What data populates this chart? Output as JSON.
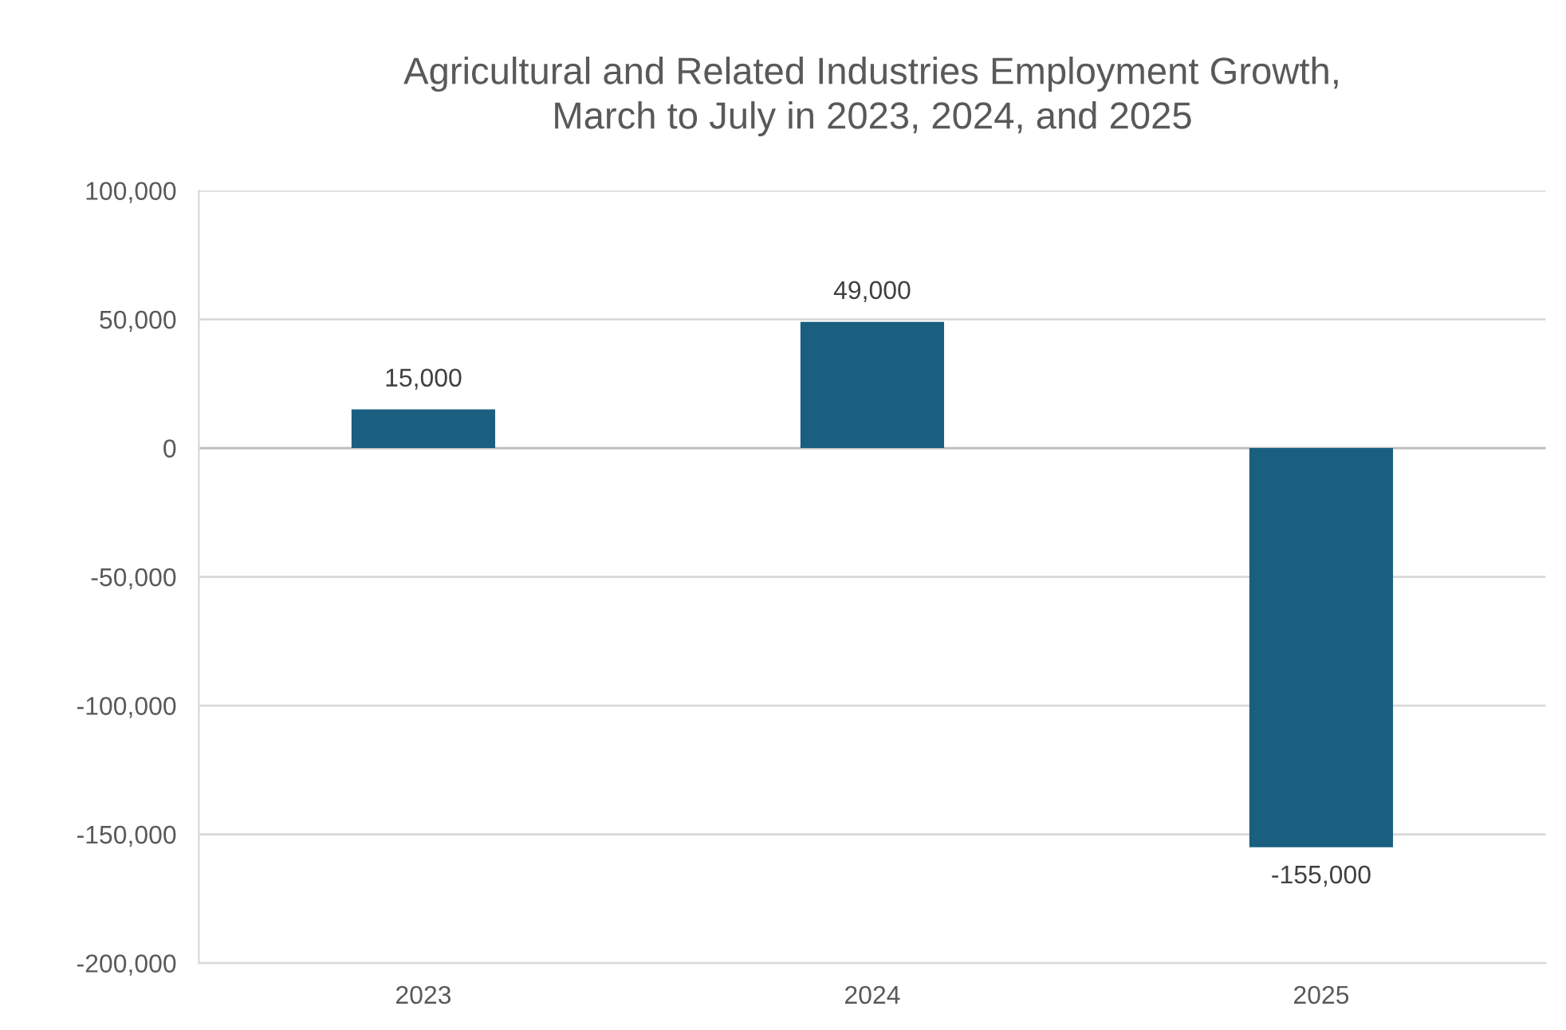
{
  "chart_data": {
    "type": "bar",
    "title": "Agricultural and Related Industries Employment Growth,\nMarch to July in 2023, 2024, and 2025",
    "categories": [
      "2023",
      "2024",
      "2025"
    ],
    "values": [
      15000,
      49000,
      -155000
    ],
    "value_labels": [
      "15,000",
      "49,000",
      "-155,000"
    ],
    "color": "#1a5f80",
    "ylim": [
      -200000,
      100000
    ],
    "yticks": [
      {
        "value": -200000,
        "label": "-200,000"
      },
      {
        "value": -150000,
        "label": "-150,000"
      },
      {
        "value": -100000,
        "label": "-100,000"
      },
      {
        "value": -50000,
        "label": "-50,000"
      },
      0,
      {
        "value": 50000,
        "label": "50,000"
      },
      {
        "value": 100000,
        "label": "100,000"
      }
    ],
    "grid": "y"
  }
}
